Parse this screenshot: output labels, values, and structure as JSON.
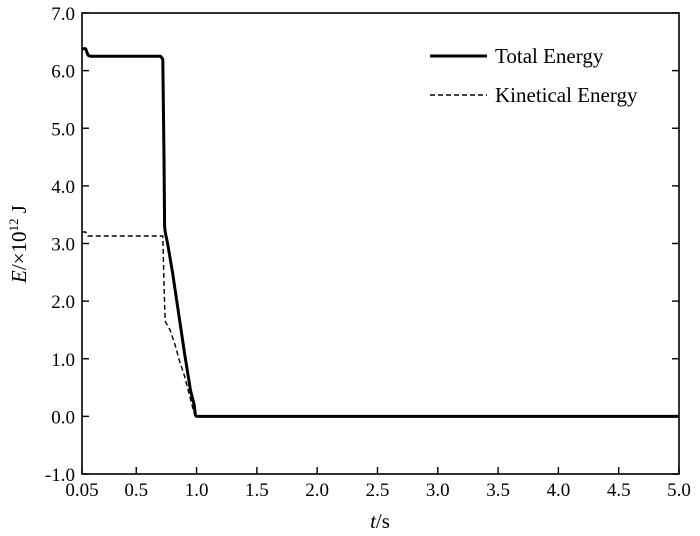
{
  "chart_data": {
    "type": "line",
    "xlim": [
      0.05,
      5.0
    ],
    "ylim": [
      -1.0,
      7.0
    ],
    "xticks": [
      "0.05",
      "0.5",
      "1.0",
      "1.5",
      "2.0",
      "2.5",
      "3.0",
      "3.5",
      "4.0",
      "4.5",
      "5.0"
    ],
    "xtick_values": [
      0.05,
      0.5,
      1.0,
      1.5,
      2.0,
      2.5,
      3.0,
      3.5,
      4.0,
      4.5,
      5.0
    ],
    "yticks": [
      "-1.0",
      "0.0",
      "1.0",
      "2.0",
      "3.0",
      "4.0",
      "5.0",
      "6.0",
      "7.0"
    ],
    "ytick_values": [
      -1.0,
      0.0,
      1.0,
      2.0,
      3.0,
      4.0,
      5.0,
      6.0,
      7.0
    ],
    "xlabel": {
      "var": "t",
      "unit": "/s"
    },
    "ylabel": {
      "var": "E",
      "unit_prefix": "/×10",
      "exponent": "12",
      "unit": " J"
    },
    "legend_position": "top-right",
    "grid": false,
    "series": [
      {
        "name": "Total Energy",
        "style": "solid",
        "x": [
          0.05,
          0.08,
          0.1,
          0.12,
          0.2,
          0.4,
          0.6,
          0.7,
          0.72,
          0.73,
          0.735,
          0.74,
          0.76,
          0.8,
          0.85,
          0.9,
          0.95,
          0.98,
          0.99,
          1.0,
          2.0,
          3.0,
          4.0,
          5.0
        ],
        "y": [
          6.38,
          6.38,
          6.27,
          6.25,
          6.25,
          6.25,
          6.25,
          6.25,
          6.2,
          4.5,
          3.3,
          3.2,
          3.0,
          2.5,
          1.8,
          1.1,
          0.45,
          0.2,
          0.02,
          0.0,
          0.0,
          0.0,
          0.0,
          0.0
        ]
      },
      {
        "name": "Kinetical Energy",
        "style": "dashed",
        "x": [
          0.05,
          0.08,
          0.1,
          0.2,
          0.4,
          0.6,
          0.7,
          0.72,
          0.73,
          0.74,
          0.78,
          0.82,
          0.86,
          0.9,
          0.95,
          0.98
        ],
        "y": [
          3.2,
          3.2,
          3.13,
          3.13,
          3.13,
          3.13,
          3.13,
          3.13,
          2.3,
          1.65,
          1.5,
          1.25,
          0.95,
          0.7,
          0.3,
          0.05
        ]
      }
    ]
  }
}
